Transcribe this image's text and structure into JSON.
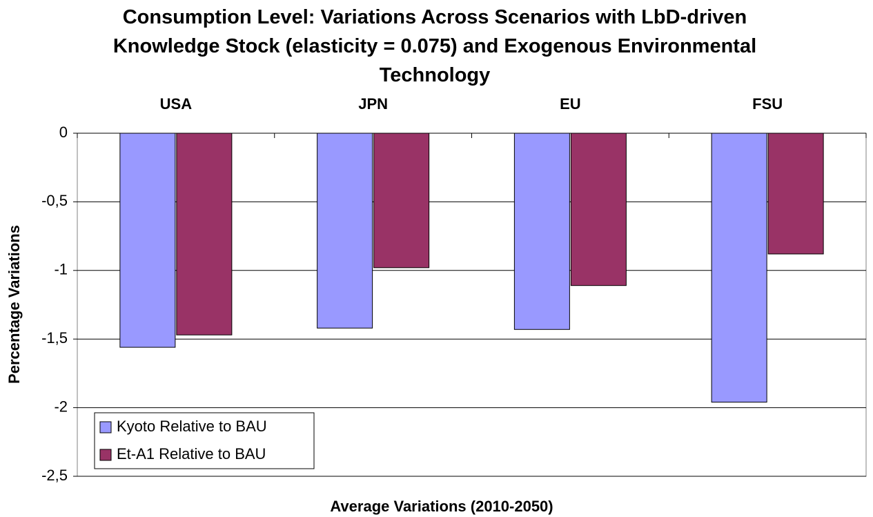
{
  "chart_data": {
    "type": "bar",
    "title": "Consumption Level: Variations Across Scenarios with LbD-driven Knowledge Stock (elasticity = 0.075) and Exogenous Environmental Technology",
    "x_label": "Average Variations (2010-2050)",
    "y_label": "Percentage Variations",
    "categories": [
      "USA",
      "JPN",
      "EU",
      "FSU"
    ],
    "series": [
      {
        "name": "Kyoto Relative to BAU",
        "color": "#9999ff",
        "values": [
          -1.56,
          -1.42,
          -1.43,
          -1.96
        ]
      },
      {
        "name": "Et-A1 Relative to BAU",
        "color": "#993366",
        "values": [
          -1.47,
          -0.98,
          -1.11,
          -0.88
        ]
      }
    ],
    "ylim": [
      -2.5,
      0
    ],
    "yticks": [
      0,
      {
        "value": -0.5,
        "label": "-0,5"
      },
      -1,
      {
        "value": -1.5,
        "label": "-1,5"
      },
      -2,
      {
        "value": -2.5,
        "label": "-2,5"
      }
    ],
    "grid": true,
    "legend": "bottom-left"
  }
}
